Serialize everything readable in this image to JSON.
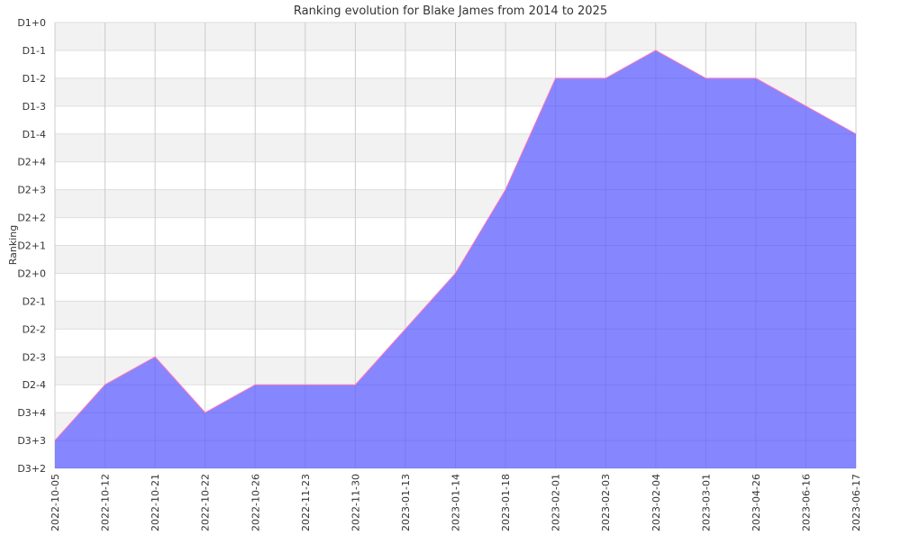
{
  "chart_data": {
    "type": "area",
    "title": "Ranking evolution for Blake James from 2014 to 2025",
    "xlabel": "",
    "ylabel": "Ranking",
    "x": [
      "2022-10-05",
      "2022-10-12",
      "2022-10-21",
      "2022-10-22",
      "2022-10-26",
      "2022-11-23",
      "2022-11-30",
      "2023-01-13",
      "2023-01-14",
      "2023-01-18",
      "2023-02-01",
      "2023-02-03",
      "2023-02-04",
      "2023-03-01",
      "2023-04-26",
      "2023-06-16",
      "2023-06-17"
    ],
    "y_ticks": [
      "D3+2",
      "D3+3",
      "D3+4",
      "D2-4",
      "D2-3",
      "D2-2",
      "D2-1",
      "D2+0",
      "D2+1",
      "D2+2",
      "D2+3",
      "D2+4",
      "D1-4",
      "D1-3",
      "D1-2",
      "D1-1",
      "D1+0"
    ],
    "series": [
      {
        "values": [
          "D3+3",
          "D2-4",
          "D2-3",
          "D3+4",
          "D2-4",
          "D2-4",
          "D2-4",
          "D2-2",
          "D2+0",
          "D2+3",
          "D1-2",
          "D1-2",
          "D1-1",
          "D1-2",
          "D1-2",
          "D1-3",
          "D1-4"
        ]
      }
    ],
    "grid": true,
    "fill_color": "#7f7fff",
    "line_color": "#ff77bb",
    "band_color": "#f2f2f2",
    "grid_color": "#cccccc"
  }
}
